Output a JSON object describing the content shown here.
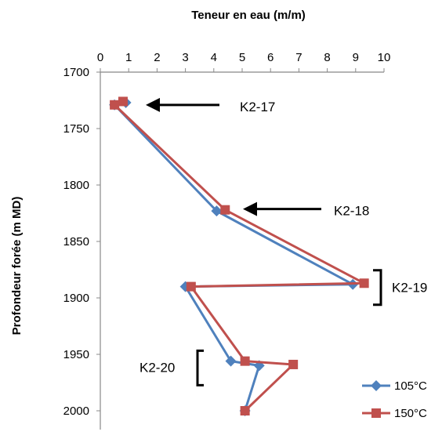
{
  "chart_data": {
    "type": "line",
    "title": "",
    "xlabel": "Teneur en eau (m/m)",
    "ylabel": "Profondeur forée (m MD)",
    "xlim": [
      0,
      10
    ],
    "ylim": [
      1700,
      2000
    ],
    "y_inverted": true,
    "x_axis_position": "top",
    "x_ticks": [
      "0",
      "1",
      "2",
      "3",
      "4",
      "5",
      "6",
      "7",
      "8",
      "9",
      "10"
    ],
    "y_ticks": [
      "1700",
      "1750",
      "1800",
      "1850",
      "1900",
      "1950",
      "2000"
    ],
    "grid": false,
    "legend_position": "bottom-right",
    "series": [
      {
        "name": "105°C",
        "color": "#4f81bd",
        "marker": "diamond",
        "points": [
          {
            "x": 0.9,
            "y": 1727
          },
          {
            "x": 0.5,
            "y": 1729
          },
          {
            "x": 4.1,
            "y": 1823
          },
          {
            "x": 8.9,
            "y": 1888
          },
          {
            "x": 3.0,
            "y": 1890
          },
          {
            "x": 4.6,
            "y": 1956
          },
          {
            "x": 5.6,
            "y": 1960
          },
          {
            "x": 5.1,
            "y": 2000
          }
        ]
      },
      {
        "name": "150°C",
        "color": "#c0504d",
        "marker": "square",
        "points": [
          {
            "x": 0.8,
            "y": 1726
          },
          {
            "x": 0.5,
            "y": 1729
          },
          {
            "x": 4.4,
            "y": 1822
          },
          {
            "x": 9.3,
            "y": 1887
          },
          {
            "x": 3.2,
            "y": 1890
          },
          {
            "x": 5.1,
            "y": 1956
          },
          {
            "x": 6.8,
            "y": 1959
          },
          {
            "x": 5.1,
            "y": 2000
          }
        ]
      }
    ],
    "annotations": [
      {
        "text": "K2-17",
        "marker": "arrow",
        "y": 1727
      },
      {
        "text": "K2-18",
        "marker": "arrow",
        "y": 1822
      },
      {
        "text": "K2-19",
        "marker": "bracket",
        "y": 1888
      },
      {
        "text": "K2-20",
        "marker": "bracket",
        "y": 1960
      }
    ]
  }
}
